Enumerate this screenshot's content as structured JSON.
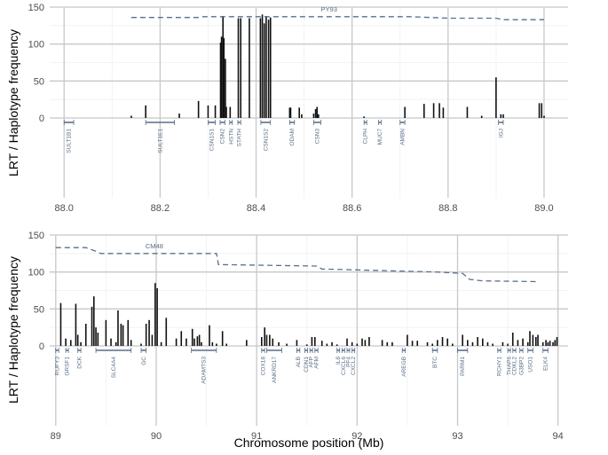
{
  "chart_data": [
    {
      "type": "bar",
      "panel": "top",
      "ylabel": "LRT / Haplotype frequency",
      "xlim": [
        87.97,
        89.05
      ],
      "ylim": [
        -108,
        150
      ],
      "x_ticks": [
        "88.0",
        "88.2",
        "88.4",
        "88.6",
        "88.8",
        "89.0"
      ],
      "x_tick_values": [
        88.0,
        88.2,
        88.4,
        88.6,
        88.8,
        89.0
      ],
      "y_ticks": [
        "0",
        "50",
        "100",
        "150"
      ],
      "y_tick_values": [
        0,
        50,
        100,
        150
      ],
      "lrt": [
        [
          88.14,
          3
        ],
        [
          88.17,
          17
        ],
        [
          88.24,
          6
        ],
        [
          88.28,
          23
        ],
        [
          88.3,
          17
        ],
        [
          88.315,
          17
        ],
        [
          88.326,
          102
        ],
        [
          88.328,
          110
        ],
        [
          88.331,
          138
        ],
        [
          88.333,
          108
        ],
        [
          88.336,
          80
        ],
        [
          88.338,
          15
        ],
        [
          88.346,
          15
        ],
        [
          88.363,
          135
        ],
        [
          88.368,
          135
        ],
        [
          88.386,
          135
        ],
        [
          88.409,
          135
        ],
        [
          88.413,
          140
        ],
        [
          88.417,
          128
        ],
        [
          88.421,
          138
        ],
        [
          88.426,
          133
        ],
        [
          88.43,
          136
        ],
        [
          88.47,
          14
        ],
        [
          88.472,
          14
        ],
        [
          88.49,
          14
        ],
        [
          88.495,
          5
        ],
        [
          88.52,
          6
        ],
        [
          88.524,
          12
        ],
        [
          88.527,
          15
        ],
        [
          88.53,
          5
        ],
        [
          88.625,
          2
        ],
        [
          88.71,
          15
        ],
        [
          88.75,
          19
        ],
        [
          88.77,
          20
        ],
        [
          88.782,
          20
        ],
        [
          88.79,
          14
        ],
        [
          88.84,
          15
        ],
        [
          88.87,
          3
        ],
        [
          88.9,
          55
        ],
        [
          88.91,
          5
        ],
        [
          88.915,
          5
        ],
        [
          88.99,
          20
        ],
        [
          88.995,
          20
        ],
        [
          89.0,
          3
        ]
      ],
      "haplotype": {
        "name": "PY93",
        "points": [
          [
            88.14,
            136
          ],
          [
            88.28,
            136
          ],
          [
            88.29,
            137
          ],
          [
            88.72,
            137
          ],
          [
            88.8,
            135
          ],
          [
            88.9,
            135
          ],
          [
            88.915,
            133
          ],
          [
            89.0,
            133
          ]
        ]
      },
      "genes": [
        {
          "name": "SULT1B1",
          "start": 88.0,
          "end": 88.02
        },
        {
          "name": "SULT1E1",
          "start": 88.17,
          "end": 88.23
        },
        {
          "name": "CSN1S1",
          "start": 88.3,
          "end": 88.315
        },
        {
          "name": "CSN2",
          "start": 88.325,
          "end": 88.335
        },
        {
          "name": "HSTN",
          "start": 88.345,
          "end": 88.35
        },
        {
          "name": "STATH",
          "start": 88.362,
          "end": 88.368
        },
        {
          "name": "CSN1S2",
          "start": 88.41,
          "end": 88.43
        },
        {
          "name": "ODAM",
          "start": 88.47,
          "end": 88.48
        },
        {
          "name": "CSN3",
          "start": 88.52,
          "end": 88.535
        },
        {
          "name": "CLPH",
          "start": 88.625,
          "end": 88.63
        },
        {
          "name": "MUC7",
          "start": 88.655,
          "end": 88.66
        },
        {
          "name": "AMBN",
          "start": 88.7,
          "end": 88.71
        },
        {
          "name": "IGJ",
          "start": 88.905,
          "end": 88.915
        }
      ]
    },
    {
      "type": "bar",
      "panel": "bottom",
      "xlabel": "Chromosome position (Mb)",
      "ylabel": "LRT / Haplotype frequency",
      "xlim": [
        88.94,
        94.1
      ],
      "ylim": [
        -108,
        150
      ],
      "x_ticks": [
        "89",
        "90",
        "91",
        "92",
        "93",
        "94"
      ],
      "x_tick_values": [
        89,
        90,
        91,
        92,
        93,
        94
      ],
      "y_ticks": [
        "0",
        "50",
        "100",
        "150"
      ],
      "y_tick_values": [
        0,
        50,
        100,
        150
      ],
      "lrt": [
        [
          89.05,
          58
        ],
        [
          89.1,
          10
        ],
        [
          89.15,
          8
        ],
        [
          89.2,
          57
        ],
        [
          89.22,
          15
        ],
        [
          89.25,
          5
        ],
        [
          89.3,
          30
        ],
        [
          89.36,
          53
        ],
        [
          89.38,
          67
        ],
        [
          89.4,
          25
        ],
        [
          89.42,
          18
        ],
        [
          89.5,
          35
        ],
        [
          89.55,
          10
        ],
        [
          89.6,
          5
        ],
        [
          89.62,
          48
        ],
        [
          89.65,
          30
        ],
        [
          89.67,
          28
        ],
        [
          89.72,
          35
        ],
        [
          89.75,
          8
        ],
        [
          89.85,
          3
        ],
        [
          89.9,
          30
        ],
        [
          89.93,
          35
        ],
        [
          89.96,
          15
        ],
        [
          89.99,
          85
        ],
        [
          90.01,
          78
        ],
        [
          90.05,
          5
        ],
        [
          90.1,
          38
        ],
        [
          90.2,
          10
        ],
        [
          90.25,
          20
        ],
        [
          90.3,
          10
        ],
        [
          90.36,
          23
        ],
        [
          90.38,
          10
        ],
        [
          90.41,
          13
        ],
        [
          90.43,
          15
        ],
        [
          90.45,
          5
        ],
        [
          90.53,
          28
        ],
        [
          90.56,
          5
        ],
        [
          90.6,
          3
        ],
        [
          90.66,
          20
        ],
        [
          90.7,
          3
        ],
        [
          90.9,
          8
        ],
        [
          91.05,
          12
        ],
        [
          91.08,
          25
        ],
        [
          91.1,
          15
        ],
        [
          91.13,
          15
        ],
        [
          91.16,
          10
        ],
        [
          91.22,
          5
        ],
        [
          91.3,
          3
        ],
        [
          91.4,
          8
        ],
        [
          91.5,
          2
        ],
        [
          91.55,
          12
        ],
        [
          91.58,
          12
        ],
        [
          91.65,
          7
        ],
        [
          91.7,
          3
        ],
        [
          91.75,
          5
        ],
        [
          91.8,
          2
        ],
        [
          91.9,
          10
        ],
        [
          91.95,
          5
        ],
        [
          92.0,
          3
        ],
        [
          92.05,
          10
        ],
        [
          92.08,
          8
        ],
        [
          92.12,
          12
        ],
        [
          92.25,
          8
        ],
        [
          92.3,
          5
        ],
        [
          92.35,
          5
        ],
        [
          92.5,
          15
        ],
        [
          92.55,
          7
        ],
        [
          92.6,
          7
        ],
        [
          92.7,
          5
        ],
        [
          92.75,
          3
        ],
        [
          92.8,
          8
        ],
        [
          92.85,
          12
        ],
        [
          92.9,
          10
        ],
        [
          92.95,
          3
        ],
        [
          93.05,
          15
        ],
        [
          93.1,
          8
        ],
        [
          93.15,
          5
        ],
        [
          93.2,
          12
        ],
        [
          93.25,
          10
        ],
        [
          93.3,
          5
        ],
        [
          93.35,
          3
        ],
        [
          93.45,
          5
        ],
        [
          93.5,
          3
        ],
        [
          93.55,
          18
        ],
        [
          93.6,
          8
        ],
        [
          93.65,
          10
        ],
        [
          93.7,
          5
        ],
        [
          93.72,
          20
        ],
        [
          93.75,
          15
        ],
        [
          93.78,
          12
        ],
        [
          93.8,
          15
        ],
        [
          93.85,
          5
        ],
        [
          93.88,
          8
        ],
        [
          93.9,
          5
        ],
        [
          93.92,
          7
        ],
        [
          93.95,
          5
        ],
        [
          93.97,
          8
        ],
        [
          93.99,
          12
        ]
      ],
      "haplotype": {
        "name": "CM48",
        "points": [
          [
            89.0,
            133
          ],
          [
            89.3,
            133
          ],
          [
            89.4,
            128
          ],
          [
            89.45,
            125
          ],
          [
            90.6,
            125
          ],
          [
            90.62,
            110
          ],
          [
            91.6,
            108
          ],
          [
            91.65,
            104
          ],
          [
            92.8,
            100
          ],
          [
            93.05,
            98
          ],
          [
            93.12,
            90
          ],
          [
            93.25,
            88
          ],
          [
            93.8,
            87
          ]
        ]
      },
      "genes": [
        {
          "name": "RUFY3",
          "start": 89.0,
          "end": 89.03
        },
        {
          "name": "GRSF1",
          "start": 89.1,
          "end": 89.12
        },
        {
          "name": "DCK",
          "start": 89.22,
          "end": 89.25
        },
        {
          "name": "SLC4A4",
          "start": 89.4,
          "end": 89.75
        },
        {
          "name": "GC",
          "start": 89.85,
          "end": 89.9
        },
        {
          "name": "ADAMTS3",
          "start": 90.35,
          "end": 90.6
        },
        {
          "name": "COX18",
          "start": 91.05,
          "end": 91.08
        },
        {
          "name": "ANKRD17",
          "start": 91.1,
          "end": 91.25
        },
        {
          "name": "ALB",
          "start": 91.4,
          "end": 91.43
        },
        {
          "name": "CDN1",
          "start": 91.48,
          "end": 91.5
        },
        {
          "name": "AFP",
          "start": 91.53,
          "end": 91.55
        },
        {
          "name": "AFM",
          "start": 91.58,
          "end": 91.61
        },
        {
          "name": "IL8",
          "start": 91.8,
          "end": 91.81
        },
        {
          "name": "CXCL6",
          "start": 91.85,
          "end": 91.86
        },
        {
          "name": "PF4",
          "start": 91.9,
          "end": 91.91
        },
        {
          "name": "CXCL2",
          "start": 91.95,
          "end": 91.96
        },
        {
          "name": "AREGB",
          "start": 92.45,
          "end": 92.48
        },
        {
          "name": "BTC",
          "start": 92.75,
          "end": 92.8
        },
        {
          "name": "PARM1",
          "start": 93.0,
          "end": 93.1
        },
        {
          "name": "RCHY1",
          "start": 93.4,
          "end": 93.43
        },
        {
          "name": "THAP6",
          "start": 93.5,
          "end": 93.52
        },
        {
          "name": "CDKL2",
          "start": 93.55,
          "end": 93.58
        },
        {
          "name": "G3BP2",
          "start": 93.62,
          "end": 93.65
        },
        {
          "name": "USO1",
          "start": 93.7,
          "end": 93.75
        },
        {
          "name": "ELK4",
          "start": 93.85,
          "end": 93.9
        }
      ]
    }
  ]
}
